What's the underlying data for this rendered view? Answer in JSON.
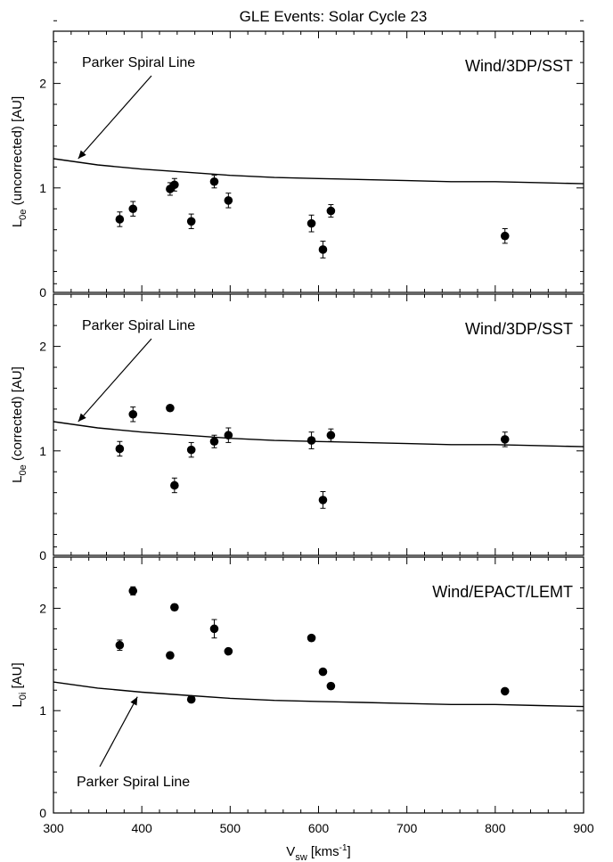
{
  "title": "GLE Events: Solar Cycle 23",
  "chart_data": [
    {
      "type": "scatter",
      "panel": "top",
      "instrument_label": "Wind/3DP/SST",
      "ylabel_main": "L",
      "ylabel_sub": "0e",
      "ylabel_rest": " (uncorrected) [AU]",
      "xlim": [
        300,
        900
      ],
      "ylim": [
        0,
        2.5
      ],
      "yticks": [
        "0",
        "1",
        "2"
      ],
      "annotation": {
        "text": "Parker Spiral Line",
        "placement": "above-left"
      },
      "parker_spiral": {
        "x": [
          300,
          350,
          400,
          450,
          500,
          550,
          600,
          650,
          700,
          750,
          800,
          850,
          900
        ],
        "y": [
          1.28,
          1.22,
          1.18,
          1.15,
          1.12,
          1.1,
          1.09,
          1.08,
          1.07,
          1.06,
          1.06,
          1.05,
          1.04
        ]
      },
      "points": [
        {
          "x": 375,
          "y": 0.7,
          "err": 0.07
        },
        {
          "x": 390,
          "y": 0.8,
          "err": 0.07
        },
        {
          "x": 432,
          "y": 0.99,
          "err": 0.06
        },
        {
          "x": 437,
          "y": 1.03,
          "err": 0.06
        },
        {
          "x": 456,
          "y": 0.68,
          "err": 0.07
        },
        {
          "x": 482,
          "y": 1.06,
          "err": 0.06
        },
        {
          "x": 498,
          "y": 0.88,
          "err": 0.07
        },
        {
          "x": 592,
          "y": 0.66,
          "err": 0.08
        },
        {
          "x": 605,
          "y": 0.41,
          "err": 0.08
        },
        {
          "x": 614,
          "y": 0.78,
          "err": 0.06
        },
        {
          "x": 811,
          "y": 0.54,
          "err": 0.07
        }
      ]
    },
    {
      "type": "scatter",
      "panel": "middle",
      "instrument_label": "Wind/3DP/SST",
      "ylabel_main": "L",
      "ylabel_sub": "0e",
      "ylabel_rest": " (corrected) [AU]",
      "xlim": [
        300,
        900
      ],
      "ylim": [
        0,
        2.5
      ],
      "yticks": [
        "0",
        "1",
        "2"
      ],
      "annotation": {
        "text": "Parker Spiral Line",
        "placement": "above-left"
      },
      "parker_spiral": {
        "x": [
          300,
          350,
          400,
          450,
          500,
          550,
          600,
          650,
          700,
          750,
          800,
          850,
          900
        ],
        "y": [
          1.28,
          1.22,
          1.18,
          1.15,
          1.12,
          1.1,
          1.09,
          1.08,
          1.07,
          1.06,
          1.06,
          1.05,
          1.04
        ]
      },
      "points": [
        {
          "x": 375,
          "y": 1.02,
          "err": 0.07
        },
        {
          "x": 390,
          "y": 1.35,
          "err": 0.07
        },
        {
          "x": 432,
          "y": 1.41,
          "err": 0.0
        },
        {
          "x": 437,
          "y": 0.67,
          "err": 0.07
        },
        {
          "x": 456,
          "y": 1.01,
          "err": 0.07
        },
        {
          "x": 482,
          "y": 1.09,
          "err": 0.06
        },
        {
          "x": 498,
          "y": 1.15,
          "err": 0.07
        },
        {
          "x": 592,
          "y": 1.1,
          "err": 0.08
        },
        {
          "x": 605,
          "y": 0.53,
          "err": 0.08
        },
        {
          "x": 614,
          "y": 1.15,
          "err": 0.06
        },
        {
          "x": 811,
          "y": 1.11,
          "err": 0.07
        }
      ]
    },
    {
      "type": "scatter",
      "panel": "bottom",
      "instrument_label": "Wind/EPACT/LEMT",
      "ylabel_main": "L",
      "ylabel_sub": "0i",
      "ylabel_rest": " [AU]",
      "xlim": [
        300,
        900
      ],
      "ylim": [
        0,
        2.5
      ],
      "yticks": [
        "0",
        "1",
        "2"
      ],
      "xticks": [
        "300",
        "400",
        "500",
        "600",
        "700",
        "800",
        "900"
      ],
      "xlabel_main": "V",
      "xlabel_sub": "sw",
      "xlabel_units": " [kms",
      "xlabel_sup": "-1",
      "xlabel_close": "]",
      "annotation": {
        "text": "Parker Spiral Line",
        "placement": "below-left"
      },
      "parker_spiral": {
        "x": [
          300,
          350,
          400,
          450,
          500,
          550,
          600,
          650,
          700,
          750,
          800,
          850,
          900
        ],
        "y": [
          1.28,
          1.22,
          1.18,
          1.15,
          1.12,
          1.1,
          1.09,
          1.08,
          1.07,
          1.06,
          1.06,
          1.05,
          1.04
        ]
      },
      "points": [
        {
          "x": 375,
          "y": 1.64,
          "err": 0.05
        },
        {
          "x": 390,
          "y": 2.17,
          "err": 0.04
        },
        {
          "x": 432,
          "y": 1.54,
          "err": 0.03
        },
        {
          "x": 437,
          "y": 2.01,
          "err": 0.03
        },
        {
          "x": 456,
          "y": 1.11,
          "err": 0.0
        },
        {
          "x": 482,
          "y": 1.8,
          "err": 0.09
        },
        {
          "x": 498,
          "y": 1.58,
          "err": 0.0
        },
        {
          "x": 592,
          "y": 1.71,
          "err": 0.0
        },
        {
          "x": 605,
          "y": 1.38,
          "err": 0.0
        },
        {
          "x": 614,
          "y": 1.24,
          "err": 0.03
        },
        {
          "x": 811,
          "y": 1.19,
          "err": 0.0
        }
      ]
    }
  ]
}
